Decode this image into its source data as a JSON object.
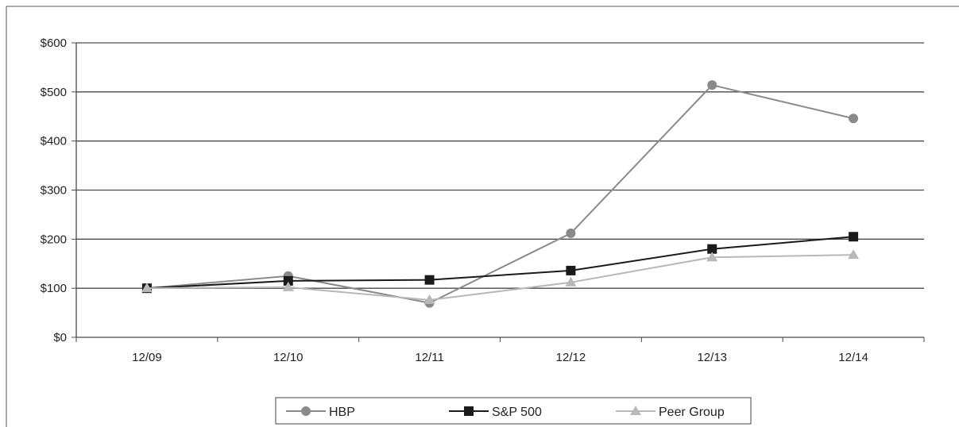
{
  "chart_data": {
    "type": "line",
    "title": "",
    "xlabel": "",
    "ylabel": "",
    "categories": [
      "12/09",
      "12/10",
      "12/11",
      "12/12",
      "12/13",
      "12/14"
    ],
    "ylim": [
      0,
      600
    ],
    "yticks": [
      0,
      100,
      200,
      300,
      400,
      500,
      600
    ],
    "ytick_labels": [
      "$0",
      "$100",
      "$200",
      "$300",
      "$400",
      "$500",
      "$600"
    ],
    "grid": true,
    "legend_position": "bottom-center",
    "series": [
      {
        "name": "HBP",
        "marker": "circle",
        "color": "#8a8a8a",
        "values": [
          100,
          125,
          70,
          212,
          514,
          446
        ]
      },
      {
        "name": "S&P 500",
        "marker": "square",
        "color": "#1a1a1a",
        "values": [
          100,
          115,
          117,
          136,
          180,
          205
        ]
      },
      {
        "name": "Peer Group",
        "marker": "triangle",
        "color": "#b8b8b8",
        "values": [
          100,
          102,
          76,
          112,
          163,
          168
        ]
      }
    ]
  }
}
